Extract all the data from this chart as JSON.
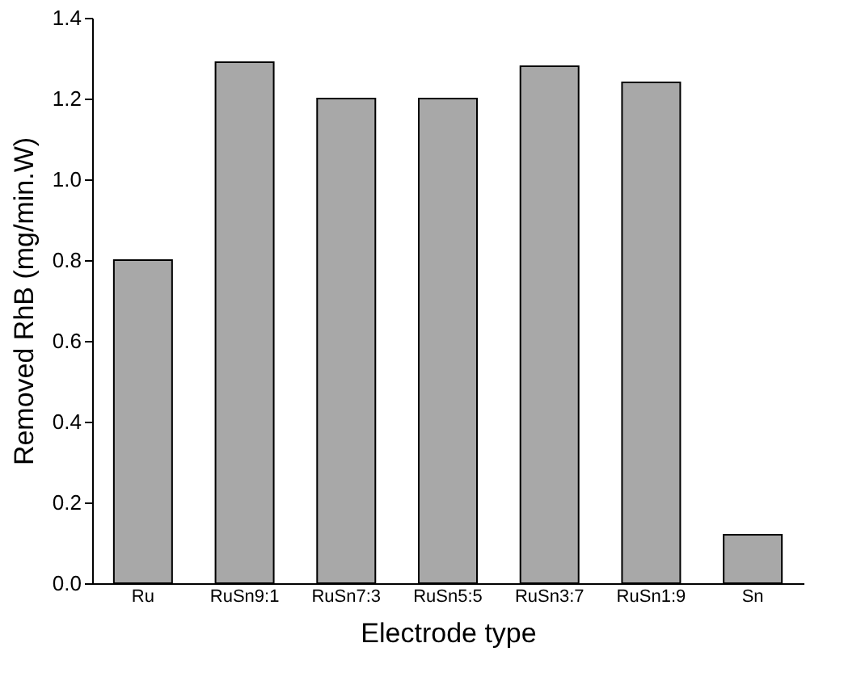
{
  "chart_data": {
    "type": "bar",
    "xlabel": "Electrode type",
    "ylabel": "Removed RhB (mg/min.W)",
    "categories": [
      "Ru",
      "RuSn9:1",
      "RuSn7:3",
      "RuSn5:5",
      "RuSn3:7",
      "RuSn1:9",
      "Sn"
    ],
    "values": [
      0.8,
      1.29,
      1.2,
      1.2,
      1.28,
      1.24,
      0.12
    ],
    "color": "#a8a8a8",
    "ylim": [
      0,
      1.4
    ],
    "yticks": [
      {
        "value": 0,
        "label": "0.0"
      },
      0.2,
      0.4,
      0.6,
      0.8,
      {
        "value": 1,
        "label": "1.0"
      },
      1.2,
      1.4
    ],
    "grid": false
  }
}
